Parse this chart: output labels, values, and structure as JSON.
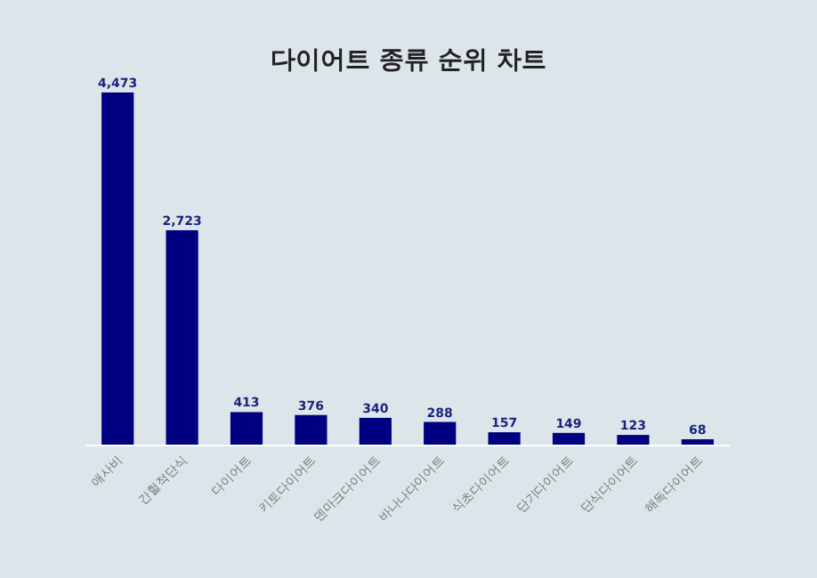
{
  "chart_data": {
    "type": "bar",
    "title": "다이어트 종류 순위 차트",
    "categories": [
      "애사비",
      "간헐적단식",
      "다이어트",
      "키토다이어트",
      "덴마크다이어트",
      "바나나다이어트",
      "식초다이어트",
      "단기다이어트",
      "단식다이어트",
      "해독다이어트"
    ],
    "values": [
      4473,
      2723,
      413,
      376,
      340,
      288,
      157,
      149,
      123,
      68
    ],
    "value_labels": [
      "4,473",
      "2,723",
      "413",
      "376",
      "340",
      "288",
      "157",
      "149",
      "123",
      "68"
    ],
    "color": "#000080"
  }
}
